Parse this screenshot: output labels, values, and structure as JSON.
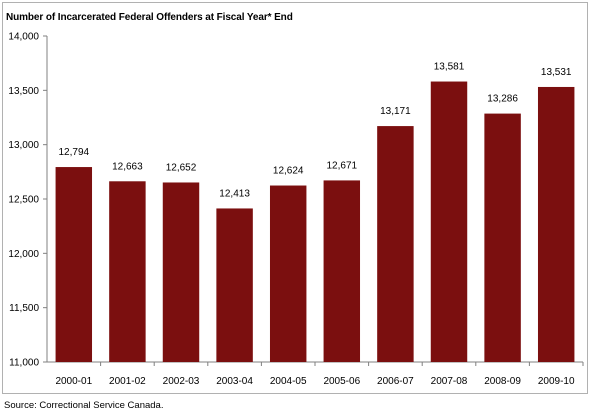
{
  "chart_data": {
    "type": "bar",
    "title": "Number of Incarcerated Federal Offenders at Fiscal Year* End",
    "xlabel": "",
    "ylabel": "",
    "categories": [
      "2000-01",
      "2001-02",
      "2002-03",
      "2003-04",
      "2004-05",
      "2005-06",
      "2006-07",
      "2007-08",
      "2008-09",
      "2009-10"
    ],
    "values": [
      12794,
      12663,
      12652,
      12413,
      12624,
      12671,
      13171,
      13581,
      13286,
      13531
    ],
    "value_labels": [
      "12,794",
      "12,663",
      "12,652",
      "12,413",
      "12,624",
      "12,671",
      "13,171",
      "13,581",
      "13,286",
      "13,531"
    ],
    "ylim": [
      11000,
      14000
    ],
    "yticks": [
      11000,
      11500,
      12000,
      12500,
      13000,
      13500,
      14000
    ],
    "ytick_labels": [
      "11,000",
      "11,500",
      "12,000",
      "12,500",
      "13,000",
      "13,500",
      "14,000"
    ],
    "grid": false,
    "legend": "none",
    "bar_color": "#7b0f0f"
  },
  "source": "Source: Correctional Service Canada."
}
